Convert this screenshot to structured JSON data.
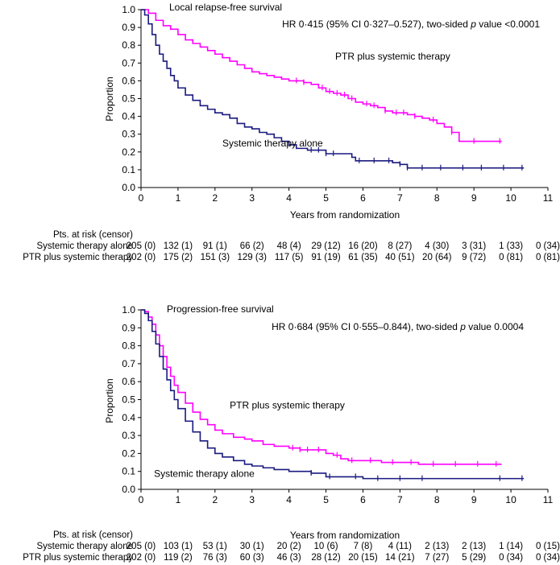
{
  "colors": {
    "ptr": "#ff00ff",
    "systemic": "#1a1a80",
    "axis": "#000000"
  },
  "chart_data": [
    {
      "type": "line",
      "title": "Local relapse-free survival",
      "xlabel": "Years from randomization",
      "ylabel": "Proportion",
      "xlim": [
        0,
        11
      ],
      "ylim": [
        0,
        1.0
      ],
      "x_ticks": [
        "0",
        "1",
        "2",
        "3",
        "4",
        "5",
        "6",
        "7",
        "8",
        "9",
        "10",
        "11"
      ],
      "y_ticks": [
        "0.0",
        "0.1",
        "0.2",
        "0.3",
        "0.4",
        "0.5",
        "0.6",
        "0.7",
        "0.8",
        "0.9",
        "1.0"
      ],
      "hr_prefix": "HR 0·415 (95% CI 0·327–0.527), two-sided ",
      "hr_p": "p",
      "hr_suffix": " value <0.0001",
      "series": [
        {
          "name": "PTR plus systemic therapy",
          "color_key": "ptr",
          "x": [
            0,
            0.2,
            0.4,
            0.6,
            0.8,
            1.0,
            1.2,
            1.4,
            1.6,
            1.8,
            2.0,
            2.2,
            2.4,
            2.6,
            2.8,
            3.0,
            3.2,
            3.4,
            3.6,
            3.8,
            4.0,
            4.2,
            4.4,
            4.6,
            4.8,
            5.0,
            5.2,
            5.4,
            5.6,
            5.8,
            6.0,
            6.2,
            6.4,
            6.6,
            6.8,
            7.0,
            7.2,
            7.4,
            7.6,
            7.8,
            8.0,
            8.2,
            8.4,
            8.6,
            9.0,
            9.5,
            9.75
          ],
          "y": [
            1.0,
            0.98,
            0.94,
            0.91,
            0.89,
            0.86,
            0.83,
            0.81,
            0.79,
            0.77,
            0.75,
            0.73,
            0.71,
            0.69,
            0.67,
            0.65,
            0.64,
            0.63,
            0.62,
            0.61,
            0.6,
            0.6,
            0.59,
            0.58,
            0.56,
            0.54,
            0.53,
            0.52,
            0.5,
            0.48,
            0.47,
            0.46,
            0.45,
            0.43,
            0.42,
            0.42,
            0.41,
            0.4,
            0.39,
            0.38,
            0.36,
            0.34,
            0.31,
            0.26,
            0.26,
            0.26,
            0.26
          ],
          "censor_x": [
            4.2,
            4.4,
            4.9,
            5.1,
            5.3,
            5.5,
            5.7,
            6.1,
            6.3,
            6.6,
            6.9,
            7.1,
            7.4,
            7.9,
            8.4,
            9.0,
            9.7
          ]
        },
        {
          "name": "Systemic therapy alone",
          "color_key": "systemic",
          "x": [
            0,
            0.1,
            0.2,
            0.3,
            0.4,
            0.5,
            0.6,
            0.7,
            0.8,
            0.9,
            1.0,
            1.2,
            1.4,
            1.6,
            1.8,
            2.0,
            2.2,
            2.4,
            2.6,
            2.8,
            3.0,
            3.2,
            3.4,
            3.6,
            3.8,
            4.0,
            4.2,
            4.5,
            5.0,
            5.5,
            5.7,
            5.8,
            6.2,
            6.5,
            6.8,
            7.0,
            7.2,
            8.0,
            9.0,
            10.0,
            10.35
          ],
          "y": [
            1.0,
            0.97,
            0.92,
            0.86,
            0.8,
            0.75,
            0.71,
            0.67,
            0.63,
            0.6,
            0.56,
            0.52,
            0.49,
            0.46,
            0.44,
            0.42,
            0.41,
            0.39,
            0.36,
            0.34,
            0.33,
            0.31,
            0.3,
            0.28,
            0.26,
            0.24,
            0.22,
            0.21,
            0.19,
            0.19,
            0.17,
            0.15,
            0.15,
            0.15,
            0.14,
            0.13,
            0.11,
            0.11,
            0.11,
            0.11,
            0.11
          ],
          "censor_x": [
            4.6,
            4.8,
            5.0,
            5.2,
            5.9,
            6.3,
            6.7,
            7.0,
            7.2,
            7.6,
            8.1,
            8.7,
            9.2,
            9.8,
            10.3
          ]
        }
      ],
      "annotations": [
        {
          "text": "PTR plus systemic therapy",
          "x": 5.25,
          "y": 0.72
        },
        {
          "text": "Systemic therapy alone",
          "x": 2.2,
          "y": 0.23
        }
      ],
      "risk_table": {
        "header": "Pts. at risk (censor)",
        "rows": [
          {
            "label": "Systemic therapy alone",
            "values": [
              "205 (0)",
              "132 (1)",
              "91 (1)",
              "66 (2)",
              "48 (4)",
              "29 (12)",
              "16 (20)",
              "8 (27)",
              "4 (30)",
              "3 (31)",
              "1 (33)",
              "0 (34)"
            ]
          },
          {
            "label": "PTR plus systemic therapy",
            "values": [
              "202 (0)",
              "175 (2)",
              "151 (3)",
              "129 (3)",
              "117 (5)",
              "91 (19)",
              "61 (35)",
              "40 (51)",
              "20 (64)",
              "9 (72)",
              "0 (81)",
              "0 (81)"
            ]
          }
        ]
      }
    },
    {
      "type": "line",
      "title": "Progression-free survival",
      "xlabel": "Years from randomization",
      "ylabel": "Proportion",
      "xlim": [
        0,
        11
      ],
      "ylim": [
        0,
        1.0
      ],
      "x_ticks": [
        "0",
        "1",
        "2",
        "3",
        "4",
        "5",
        "6",
        "7",
        "8",
        "9",
        "10",
        "11"
      ],
      "y_ticks": [
        "0.0",
        "0.1",
        "0.2",
        "0.3",
        "0.4",
        "0.5",
        "0.6",
        "0.7",
        "0.8",
        "0.9",
        "1.0"
      ],
      "hr_prefix": "HR 0·684 (95% CI 0·555–0.844), two-sided ",
      "hr_p": "p",
      "hr_suffix": " value 0.0004",
      "series": [
        {
          "name": "PTR plus systemic therapy",
          "color_key": "ptr",
          "x": [
            0,
            0.1,
            0.2,
            0.3,
            0.4,
            0.5,
            0.6,
            0.7,
            0.8,
            0.9,
            1.0,
            1.2,
            1.4,
            1.6,
            1.8,
            2.0,
            2.2,
            2.5,
            2.8,
            3.0,
            3.3,
            3.6,
            4.0,
            4.3,
            4.6,
            5.0,
            5.2,
            5.4,
            5.6,
            6.0,
            6.5,
            7.0,
            7.5,
            8.0,
            9.0,
            9.75
          ],
          "y": [
            1.0,
            0.99,
            0.96,
            0.92,
            0.86,
            0.8,
            0.74,
            0.68,
            0.63,
            0.58,
            0.54,
            0.48,
            0.43,
            0.39,
            0.36,
            0.33,
            0.31,
            0.29,
            0.28,
            0.27,
            0.25,
            0.24,
            0.23,
            0.22,
            0.22,
            0.2,
            0.19,
            0.17,
            0.16,
            0.16,
            0.15,
            0.15,
            0.14,
            0.14,
            0.14,
            0.14
          ],
          "censor_x": [
            4.1,
            4.3,
            4.5,
            4.8,
            5.3,
            5.7,
            6.2,
            6.8,
            7.3,
            7.9,
            8.5,
            9.1,
            9.6
          ]
        },
        {
          "name": "Systemic therapy alone",
          "color_key": "systemic",
          "x": [
            0,
            0.1,
            0.2,
            0.3,
            0.4,
            0.5,
            0.6,
            0.7,
            0.8,
            0.9,
            1.0,
            1.2,
            1.4,
            1.6,
            1.8,
            2.0,
            2.2,
            2.5,
            2.8,
            3.0,
            3.3,
            3.6,
            4.0,
            4.3,
            4.6,
            5.0,
            5.5,
            6.0,
            7.0,
            8.0,
            9.0,
            10.0,
            10.35
          ],
          "y": [
            1.0,
            0.98,
            0.94,
            0.88,
            0.81,
            0.74,
            0.67,
            0.61,
            0.55,
            0.5,
            0.45,
            0.38,
            0.32,
            0.27,
            0.23,
            0.2,
            0.18,
            0.16,
            0.14,
            0.13,
            0.12,
            0.11,
            0.1,
            0.1,
            0.09,
            0.07,
            0.07,
            0.06,
            0.06,
            0.06,
            0.06,
            0.06,
            0.06
          ],
          "censor_x": [
            4.6,
            5.1,
            5.8,
            6.4,
            7.0,
            7.6,
            9.7,
            10.3
          ]
        }
      ],
      "annotations": [
        {
          "text": "PTR plus systemic therapy",
          "x": 2.4,
          "y": 0.45
        },
        {
          "text": "Systemic therapy alone",
          "x": 0.35,
          "y": 0.07
        }
      ],
      "risk_table": {
        "header": "Pts. at risk (censor)",
        "rows": [
          {
            "label": "Systemic therapy alone",
            "values": [
              "205 (0)",
              "103 (1)",
              "53 (1)",
              "30 (1)",
              "20 (2)",
              "10 (6)",
              "7 (8)",
              "4 (11)",
              "2 (13)",
              "2 (13)",
              "1 (14)",
              "0 (15)"
            ]
          },
          {
            "label": "PTR plus systemic therapy",
            "values": [
              "202 (0)",
              "119 (2)",
              "76 (3)",
              "60 (3)",
              "46 (3)",
              "28 (12)",
              "20 (15)",
              "14 (21)",
              "7 (27)",
              "5 (29)",
              "0 (34)",
              "0 (34)"
            ]
          }
        ]
      }
    }
  ]
}
